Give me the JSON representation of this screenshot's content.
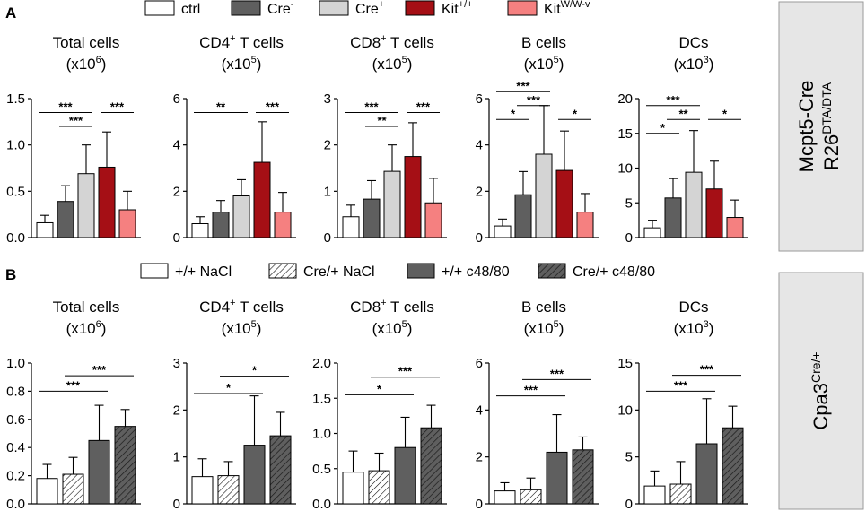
{
  "colors": {
    "ctrl": "#ffffff",
    "cre_minus": "#5f5f5f",
    "cre_plus": "#d4d4d4",
    "kit_wt": "#a50f15",
    "kit_wwv": "#f58080",
    "dark_grey": "#5f5f5f",
    "side_box": "#e6e6e6",
    "side_border": "#9a9a9a"
  },
  "panels": {
    "A": {
      "letter": "A",
      "side_label_line1": "Mcpt5-Cre",
      "side_label_line2": "R26",
      "side_label_sup": "DTA/DTA",
      "legend": [
        {
          "key": "ctrl",
          "label": "ctrl",
          "sup": "",
          "fill": "ctrl",
          "hatch": false
        },
        {
          "key": "cre_minus",
          "label": "Cre",
          "sup": "-",
          "fill": "cre_minus",
          "hatch": false
        },
        {
          "key": "cre_plus",
          "label": "Cre",
          "sup": "+",
          "fill": "cre_plus",
          "hatch": false
        },
        {
          "key": "kit_wt",
          "label": "Kit",
          "sup": "+/+",
          "fill": "kit_wt",
          "hatch": false
        },
        {
          "key": "kit_wwv",
          "label": "Kit",
          "sup": "W/W-v",
          "fill": "kit_wwv",
          "hatch": false
        }
      ]
    },
    "B": {
      "letter": "B",
      "side_label_line1": "Cpa3",
      "side_label_sup": "Cre/+",
      "legend": [
        {
          "key": "nacl_wt",
          "label": "+/+ NaCl",
          "sup": "",
          "fill": "ctrl",
          "hatch": false
        },
        {
          "key": "nacl_cre",
          "label": "Cre/+ NaCl",
          "sup": "",
          "fill": "ctrl",
          "hatch": true
        },
        {
          "key": "c48_wt",
          "label": "+/+ c48/80",
          "sup": "",
          "fill": "dark_grey",
          "hatch": false
        },
        {
          "key": "c48_cre",
          "label": "Cre/+ c48/80",
          "sup": "",
          "fill": "dark_grey",
          "hatch": true
        }
      ]
    }
  },
  "chart_data": [
    {
      "panel": "A",
      "type": "bar",
      "title": "Total cells",
      "unit_base": "(x10",
      "unit_exp": "6",
      "unit_close": ")",
      "ylim": [
        0,
        1.5
      ],
      "yticks": [
        0,
        0.5,
        1.0,
        1.5
      ],
      "ytick_labels": [
        "0.0",
        "0.5",
        "1.0",
        "1.5"
      ],
      "series": [
        {
          "name": "ctrl",
          "value": 0.16,
          "err": 0.08,
          "fill": "ctrl",
          "hatch": false
        },
        {
          "name": "Cre-",
          "value": 0.39,
          "err": 0.17,
          "fill": "cre_minus",
          "hatch": false
        },
        {
          "name": "Cre+",
          "value": 0.69,
          "err": 0.31,
          "fill": "cre_plus",
          "hatch": false
        },
        {
          "name": "Kit+/+",
          "value": 0.76,
          "err": 0.38,
          "fill": "kit_wt",
          "hatch": false
        },
        {
          "name": "KitW/W-v",
          "value": 0.3,
          "err": 0.2,
          "fill": "kit_wwv",
          "hatch": false
        }
      ],
      "significance": [
        {
          "from": 0,
          "to": 2,
          "label": "***",
          "y": 1.35
        },
        {
          "from": 1,
          "to": 2,
          "label": "***",
          "y": 1.2
        },
        {
          "from": 3,
          "to": 4,
          "label": "***",
          "y": 1.35
        }
      ]
    },
    {
      "panel": "A",
      "type": "bar",
      "title": "CD4",
      "title_sup": "+",
      "title_rest": " T cells",
      "unit_base": "(x10",
      "unit_exp": "5",
      "unit_close": ")",
      "ylim": [
        0,
        6
      ],
      "yticks": [
        0,
        2,
        4,
        6
      ],
      "ytick_labels": [
        "0",
        "2",
        "4",
        "6"
      ],
      "series": [
        {
          "name": "ctrl",
          "value": 0.6,
          "err": 0.3,
          "fill": "ctrl",
          "hatch": false
        },
        {
          "name": "Cre-",
          "value": 1.1,
          "err": 0.5,
          "fill": "cre_minus",
          "hatch": false
        },
        {
          "name": "Cre+",
          "value": 1.8,
          "err": 0.7,
          "fill": "cre_plus",
          "hatch": false
        },
        {
          "name": "Kit+/+",
          "value": 3.25,
          "err": 1.75,
          "fill": "kit_wt",
          "hatch": false
        },
        {
          "name": "KitW/W-v",
          "value": 1.1,
          "err": 0.85,
          "fill": "kit_wwv",
          "hatch": false
        }
      ],
      "significance": [
        {
          "from": 0,
          "to": 2,
          "label": "**",
          "y": 5.4
        },
        {
          "from": 3,
          "to": 4,
          "label": "***",
          "y": 5.4
        }
      ]
    },
    {
      "panel": "A",
      "type": "bar",
      "title": "CD8",
      "title_sup": "+",
      "title_rest": " T cells",
      "unit_base": "(x10",
      "unit_exp": "5",
      "unit_close": ")",
      "ylim": [
        0,
        3
      ],
      "yticks": [
        0,
        1,
        2,
        3
      ],
      "ytick_labels": [
        "0",
        "1",
        "2",
        "3"
      ],
      "series": [
        {
          "name": "ctrl",
          "value": 0.45,
          "err": 0.25,
          "fill": "ctrl",
          "hatch": false
        },
        {
          "name": "Cre-",
          "value": 0.83,
          "err": 0.4,
          "fill": "cre_minus",
          "hatch": false
        },
        {
          "name": "Cre+",
          "value": 1.43,
          "err": 0.57,
          "fill": "cre_plus",
          "hatch": false
        },
        {
          "name": "Kit+/+",
          "value": 1.75,
          "err": 0.73,
          "fill": "kit_wt",
          "hatch": false
        },
        {
          "name": "KitW/W-v",
          "value": 0.75,
          "err": 0.53,
          "fill": "kit_wwv",
          "hatch": false
        }
      ],
      "significance": [
        {
          "from": 0,
          "to": 2,
          "label": "***",
          "y": 2.7
        },
        {
          "from": 1,
          "to": 2,
          "label": "**",
          "y": 2.4
        },
        {
          "from": 3,
          "to": 4,
          "label": "***",
          "y": 2.7
        }
      ]
    },
    {
      "panel": "A",
      "type": "bar",
      "title": "B cells",
      "unit_base": "(x10",
      "unit_exp": "5",
      "unit_close": ")",
      "ylim": [
        0,
        6
      ],
      "yticks": [
        0,
        2,
        4,
        6
      ],
      "ytick_labels": [
        "0",
        "2",
        "4",
        "6"
      ],
      "series": [
        {
          "name": "ctrl",
          "value": 0.5,
          "err": 0.3,
          "fill": "ctrl",
          "hatch": false
        },
        {
          "name": "Cre-",
          "value": 1.85,
          "err": 1.0,
          "fill": "cre_minus",
          "hatch": false
        },
        {
          "name": "Cre+",
          "value": 3.6,
          "err": 2.1,
          "fill": "cre_plus",
          "hatch": false
        },
        {
          "name": "Kit+/+",
          "value": 2.9,
          "err": 1.7,
          "fill": "kit_wt",
          "hatch": false
        },
        {
          "name": "KitW/W-v",
          "value": 1.1,
          "err": 0.8,
          "fill": "kit_wwv",
          "hatch": false
        }
      ],
      "significance": [
        {
          "from": 0,
          "to": 2,
          "label": "***",
          "y": 6.3
        },
        {
          "from": 1,
          "to": 2,
          "label": "***",
          "y": 5.7
        },
        {
          "from": 0,
          "to": 1,
          "label": "*",
          "y": 5.1
        },
        {
          "from": 3,
          "to": 4,
          "label": "*",
          "y": 5.1
        }
      ]
    },
    {
      "panel": "A",
      "type": "bar",
      "title": "DCs",
      "unit_base": "(x10",
      "unit_exp": "3",
      "unit_close": ")",
      "ylim": [
        0,
        20
      ],
      "yticks": [
        0,
        5,
        10,
        15,
        20
      ],
      "ytick_labels": [
        "0",
        "5",
        "10",
        "15",
        "20"
      ],
      "series": [
        {
          "name": "ctrl",
          "value": 1.4,
          "err": 1.1,
          "fill": "ctrl",
          "hatch": false
        },
        {
          "name": "Cre-",
          "value": 5.7,
          "err": 2.8,
          "fill": "cre_minus",
          "hatch": false
        },
        {
          "name": "Cre+",
          "value": 9.4,
          "err": 6.0,
          "fill": "cre_plus",
          "hatch": false
        },
        {
          "name": "Kit+/+",
          "value": 7.0,
          "err": 4.0,
          "fill": "kit_wt",
          "hatch": false
        },
        {
          "name": "KitW/W-v",
          "value": 2.9,
          "err": 2.5,
          "fill": "kit_wwv",
          "hatch": false
        }
      ],
      "significance": [
        {
          "from": 0,
          "to": 2,
          "label": "***",
          "y": 19.0
        },
        {
          "from": 1,
          "to": 2,
          "label": "**",
          "y": 17.0
        },
        {
          "from": 0,
          "to": 1,
          "label": "*",
          "y": 15.0
        },
        {
          "from": 3,
          "to": 4,
          "label": "*",
          "y": 17.0
        }
      ]
    },
    {
      "panel": "B",
      "type": "bar",
      "title": "Total cells",
      "unit_base": "(x10",
      "unit_exp": "6",
      "unit_close": ")",
      "ylim": [
        0,
        1.0
      ],
      "yticks": [
        0,
        0.2,
        0.4,
        0.6,
        0.8,
        1.0
      ],
      "ytick_labels": [
        "0.0",
        "0.2",
        "0.4",
        "0.6",
        "0.8",
        "1.0"
      ],
      "series": [
        {
          "name": "+/+ NaCl",
          "value": 0.18,
          "err": 0.1,
          "fill": "ctrl",
          "hatch": false
        },
        {
          "name": "Cre/+ NaCl",
          "value": 0.21,
          "err": 0.12,
          "fill": "ctrl",
          "hatch": true
        },
        {
          "name": "+/+ c48/80",
          "value": 0.45,
          "err": 0.25,
          "fill": "dark_grey",
          "hatch": false
        },
        {
          "name": "Cre/+ c48/80",
          "value": 0.55,
          "err": 0.12,
          "fill": "dark_grey",
          "hatch": true
        }
      ],
      "significance": [
        {
          "from": 0,
          "to": 2,
          "label": "***",
          "y": 0.8
        },
        {
          "from": 1,
          "to": 3,
          "label": "***",
          "y": 0.91
        }
      ]
    },
    {
      "panel": "B",
      "type": "bar",
      "title": "CD4",
      "title_sup": "+",
      "title_rest": " T cells",
      "unit_base": "(x10",
      "unit_exp": "5",
      "unit_close": ")",
      "ylim": [
        0,
        3
      ],
      "yticks": [
        0,
        1,
        2,
        3
      ],
      "ytick_labels": [
        "0",
        "1",
        "2",
        "3"
      ],
      "series": [
        {
          "name": "+/+ NaCl",
          "value": 0.58,
          "err": 0.38,
          "fill": "ctrl",
          "hatch": false
        },
        {
          "name": "Cre/+ NaCl",
          "value": 0.6,
          "err": 0.3,
          "fill": "ctrl",
          "hatch": true
        },
        {
          "name": "+/+ c48/80",
          "value": 1.25,
          "err": 1.05,
          "fill": "dark_grey",
          "hatch": false
        },
        {
          "name": "Cre/+ c48/80",
          "value": 1.45,
          "err": 0.5,
          "fill": "dark_grey",
          "hatch": true
        }
      ],
      "significance": [
        {
          "from": 0,
          "to": 2,
          "label": "*",
          "y": 2.35
        },
        {
          "from": 1,
          "to": 3,
          "label": "*",
          "y": 2.72
        }
      ]
    },
    {
      "panel": "B",
      "type": "bar",
      "title": "CD8",
      "title_sup": "+",
      "title_rest": " T cells",
      "unit_base": "(x10",
      "unit_exp": "5",
      "unit_close": ")",
      "ylim": [
        0,
        2.0
      ],
      "yticks": [
        0,
        0.5,
        1.0,
        1.5,
        2.0
      ],
      "ytick_labels": [
        "0.0",
        "0.5",
        "1.0",
        "1.5",
        "2.0"
      ],
      "series": [
        {
          "name": "+/+ NaCl",
          "value": 0.45,
          "err": 0.3,
          "fill": "ctrl",
          "hatch": false
        },
        {
          "name": "Cre/+ NaCl",
          "value": 0.47,
          "err": 0.25,
          "fill": "ctrl",
          "hatch": true
        },
        {
          "name": "+/+ c48/80",
          "value": 0.8,
          "err": 0.43,
          "fill": "dark_grey",
          "hatch": false
        },
        {
          "name": "Cre/+ c48/80",
          "value": 1.08,
          "err": 0.32,
          "fill": "dark_grey",
          "hatch": true
        }
      ],
      "significance": [
        {
          "from": 0,
          "to": 2,
          "label": "*",
          "y": 1.55
        },
        {
          "from": 1,
          "to": 3,
          "label": "***",
          "y": 1.8
        }
      ]
    },
    {
      "panel": "B",
      "type": "bar",
      "title": "B cells",
      "unit_base": "(x10",
      "unit_exp": "5",
      "unit_close": ")",
      "ylim": [
        0,
        6
      ],
      "yticks": [
        0,
        2,
        4,
        6
      ],
      "ytick_labels": [
        "0",
        "2",
        "4",
        "6"
      ],
      "series": [
        {
          "name": "+/+ NaCl",
          "value": 0.55,
          "err": 0.35,
          "fill": "ctrl",
          "hatch": false
        },
        {
          "name": "Cre/+ NaCl",
          "value": 0.6,
          "err": 0.5,
          "fill": "ctrl",
          "hatch": true
        },
        {
          "name": "+/+ c48/80",
          "value": 2.2,
          "err": 1.6,
          "fill": "dark_grey",
          "hatch": false
        },
        {
          "name": "Cre/+ c48/80",
          "value": 2.3,
          "err": 0.55,
          "fill": "dark_grey",
          "hatch": true
        }
      ],
      "significance": [
        {
          "from": 0,
          "to": 2,
          "label": "***",
          "y": 4.6
        },
        {
          "from": 1,
          "to": 3,
          "label": "***",
          "y": 5.3
        }
      ]
    },
    {
      "panel": "B",
      "type": "bar",
      "title": "DCs",
      "unit_base": "(x10",
      "unit_exp": "3",
      "unit_close": ")",
      "ylim": [
        0,
        15
      ],
      "yticks": [
        0,
        5,
        10,
        15
      ],
      "ytick_labels": [
        "0",
        "5",
        "10",
        "15"
      ],
      "series": [
        {
          "name": "+/+ NaCl",
          "value": 1.9,
          "err": 1.6,
          "fill": "ctrl",
          "hatch": false
        },
        {
          "name": "Cre/+ NaCl",
          "value": 2.1,
          "err": 2.4,
          "fill": "ctrl",
          "hatch": true
        },
        {
          "name": "+/+ c48/80",
          "value": 6.4,
          "err": 4.8,
          "fill": "dark_grey",
          "hatch": false
        },
        {
          "name": "Cre/+ c48/80",
          "value": 8.1,
          "err": 2.3,
          "fill": "dark_grey",
          "hatch": true
        }
      ],
      "significance": [
        {
          "from": 0,
          "to": 2,
          "label": "***",
          "y": 12.0
        },
        {
          "from": 1,
          "to": 3,
          "label": "***",
          "y": 13.7
        }
      ]
    }
  ]
}
